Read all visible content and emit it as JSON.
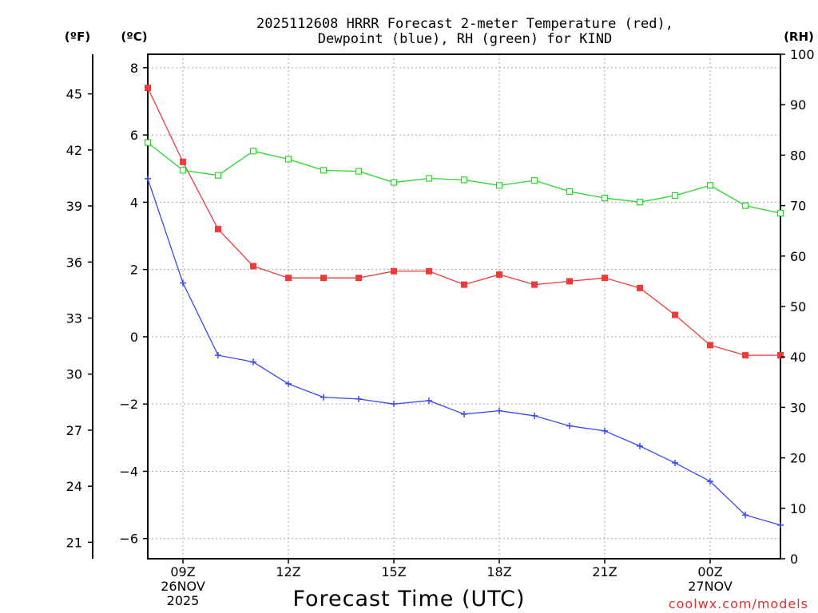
{
  "chart_data": {
    "type": "line",
    "title_line1": "2025112608 HRRR Forecast 2-meter Temperature (red),",
    "title_line2": "Dewpoint (blue), RH (green) for KIND",
    "xlabel": "Forecast Time (UTC)",
    "unit_f": "(ºF)",
    "unit_c": "(ºC)",
    "unit_rh": "(RH)",
    "credit": "coolwx.com/models",
    "x_hours": [
      8,
      9,
      10,
      11,
      12,
      13,
      14,
      15,
      16,
      17,
      18,
      19,
      20,
      21,
      22,
      23,
      24,
      25,
      26
    ],
    "x_ticks": [
      {
        "hour": 9,
        "lines": [
          "09Z",
          "26NOV",
          "2025"
        ]
      },
      {
        "hour": 12,
        "lines": [
          "12Z"
        ]
      },
      {
        "hour": 15,
        "lines": [
          "15Z"
        ]
      },
      {
        "hour": 18,
        "lines": [
          "18Z"
        ]
      },
      {
        "hour": 21,
        "lines": [
          "21Z"
        ]
      },
      {
        "hour": 24,
        "lines": [
          "00Z",
          "27NOV"
        ]
      }
    ],
    "ylim_c": [
      -6.6,
      8.4
    ],
    "yticks_c": [
      -6,
      -4,
      -2,
      0,
      2,
      4,
      6,
      8
    ],
    "ytick_labels_c": [
      "−6",
      "−4",
      "−2",
      "0",
      "2",
      "4",
      "6",
      "8"
    ],
    "yticks_f": [
      21,
      24,
      27,
      30,
      33,
      36,
      39,
      42,
      45
    ],
    "ytick_labels_f": [
      "21",
      "24",
      "27",
      "30",
      "33",
      "36",
      "39",
      "42",
      "45"
    ],
    "ylim_rh": [
      0,
      100
    ],
    "yticks_rh": [
      0,
      10,
      20,
      30,
      40,
      50,
      60,
      70,
      80,
      90,
      100
    ],
    "ytick_labels_rh": [
      "0",
      "10",
      "20",
      "30",
      "40",
      "50",
      "60",
      "70",
      "80",
      "90",
      "100"
    ],
    "grid": true,
    "series": [
      {
        "name": "Temperature",
        "axis": "c",
        "color": "#f03a3a",
        "marker": "filled-square",
        "values": [
          7.4,
          5.2,
          3.2,
          2.1,
          1.75,
          1.75,
          1.75,
          1.95,
          1.95,
          1.55,
          1.85,
          1.55,
          1.65,
          1.75,
          1.45,
          0.65,
          -0.25,
          -0.55,
          -0.55
        ]
      },
      {
        "name": "Dewpoint",
        "axis": "c",
        "color": "#3a48f0",
        "marker": "plus",
        "values": [
          4.7,
          1.6,
          -0.55,
          -0.75,
          -1.4,
          -1.8,
          -1.85,
          -2.0,
          -1.9,
          -2.3,
          -2.2,
          -2.35,
          -2.65,
          -2.8,
          -3.25,
          -3.75,
          -4.3,
          -5.3,
          -5.6
        ]
      },
      {
        "name": "RH",
        "axis": "rh",
        "color": "#2ad62a",
        "marker": "open-square",
        "values": [
          82.5,
          77.0,
          76.0,
          80.8,
          79.2,
          77.0,
          76.8,
          74.6,
          75.4,
          75.1,
          74.0,
          75.0,
          72.8,
          71.5,
          70.7,
          72.0,
          74.0,
          70.0,
          68.5
        ]
      }
    ]
  }
}
